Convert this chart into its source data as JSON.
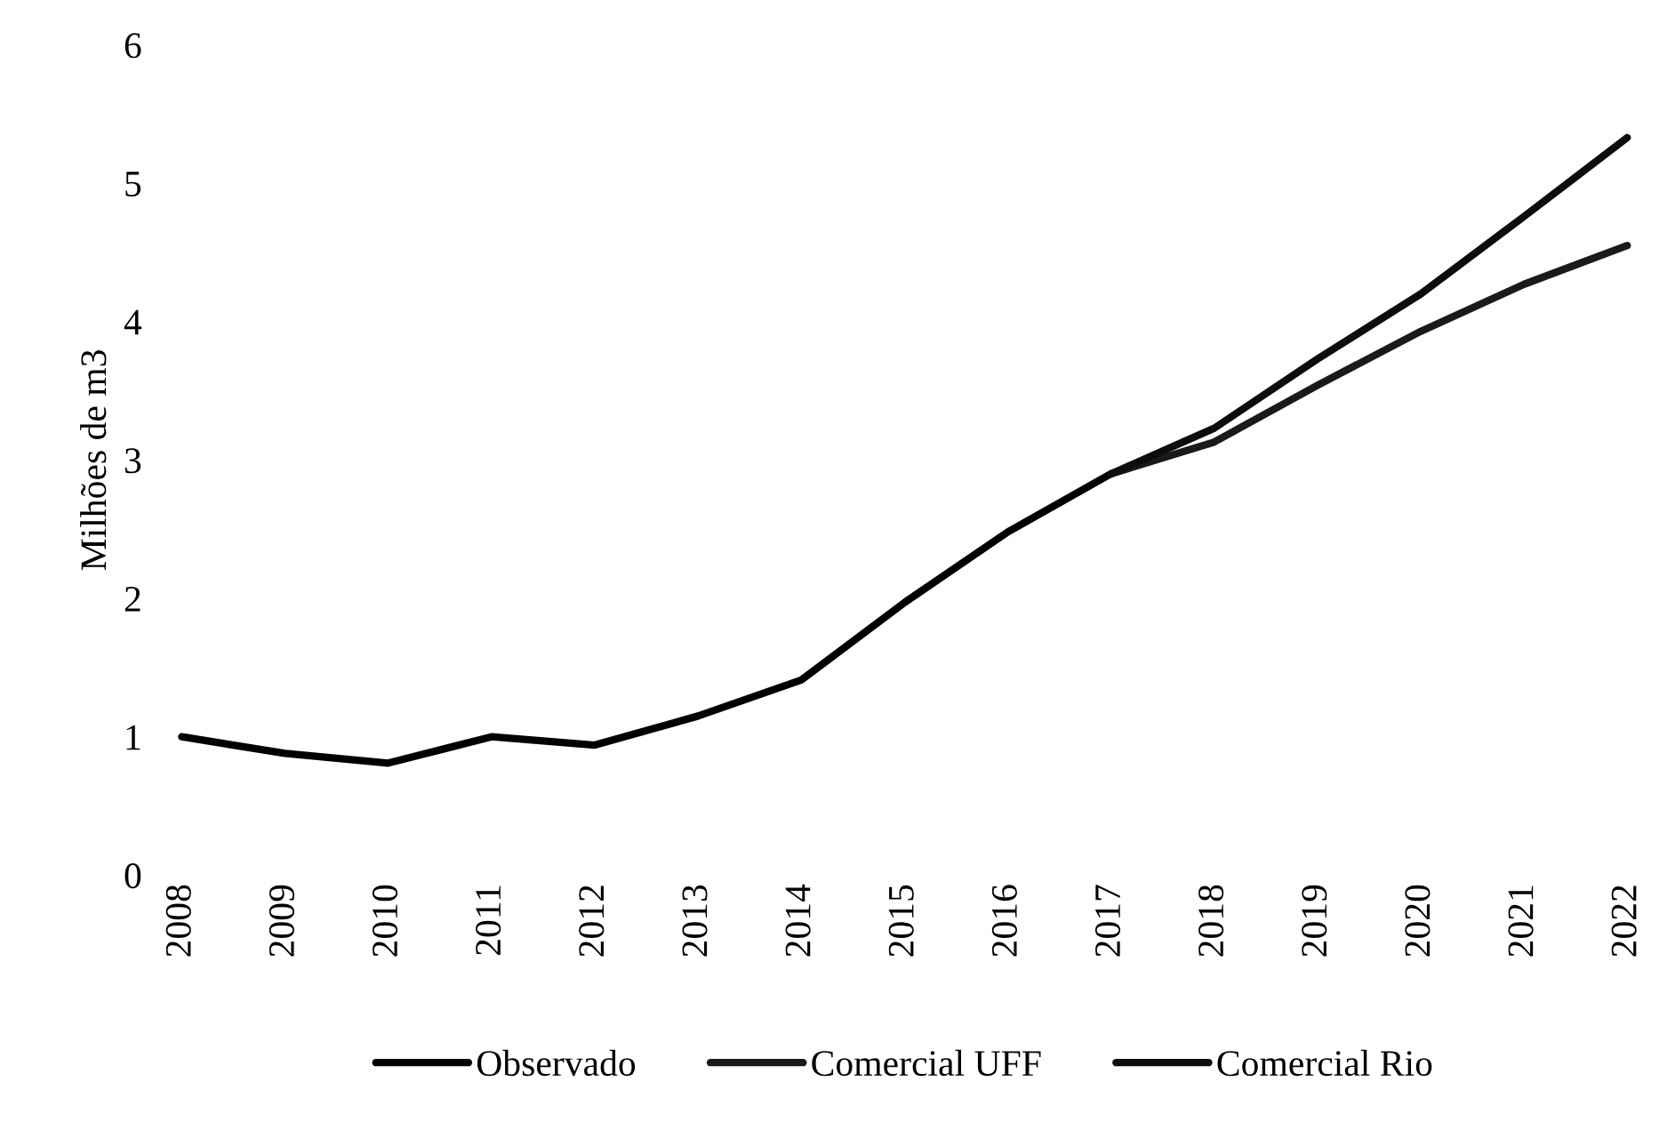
{
  "chart_data": {
    "type": "line",
    "ylabel": "Milhões de m3",
    "categories": [
      "2008",
      "2009",
      "2010",
      "2011",
      "2012",
      "2013",
      "2014",
      "2015",
      "2016",
      "2017",
      "2018",
      "2019",
      "2020",
      "2021",
      "2022"
    ],
    "series": [
      {
        "name": "Observado",
        "color": "#000000",
        "values": [
          1.0,
          0.88,
          0.81,
          1.0,
          0.94,
          1.15,
          1.41,
          1.97,
          2.48,
          2.9,
          null,
          null,
          null,
          null,
          null
        ]
      },
      {
        "name": "Comercial UFF",
        "color": "#1a1a1a",
        "values": [
          null,
          null,
          null,
          null,
          null,
          null,
          null,
          null,
          null,
          2.9,
          3.13,
          3.54,
          3.93,
          4.27,
          4.55
        ]
      },
      {
        "name": "Comercial Rio",
        "color": "#0d0d0d",
        "values": [
          null,
          null,
          null,
          null,
          null,
          null,
          null,
          null,
          null,
          2.9,
          3.23,
          3.73,
          4.2,
          4.76,
          5.33
        ]
      }
    ],
    "ylim": [
      0,
      6
    ],
    "yticks": [
      0,
      1,
      2,
      3,
      4,
      5,
      6
    ],
    "grid": false,
    "legend": "bottom",
    "marker": "none",
    "line_style": "solid"
  }
}
